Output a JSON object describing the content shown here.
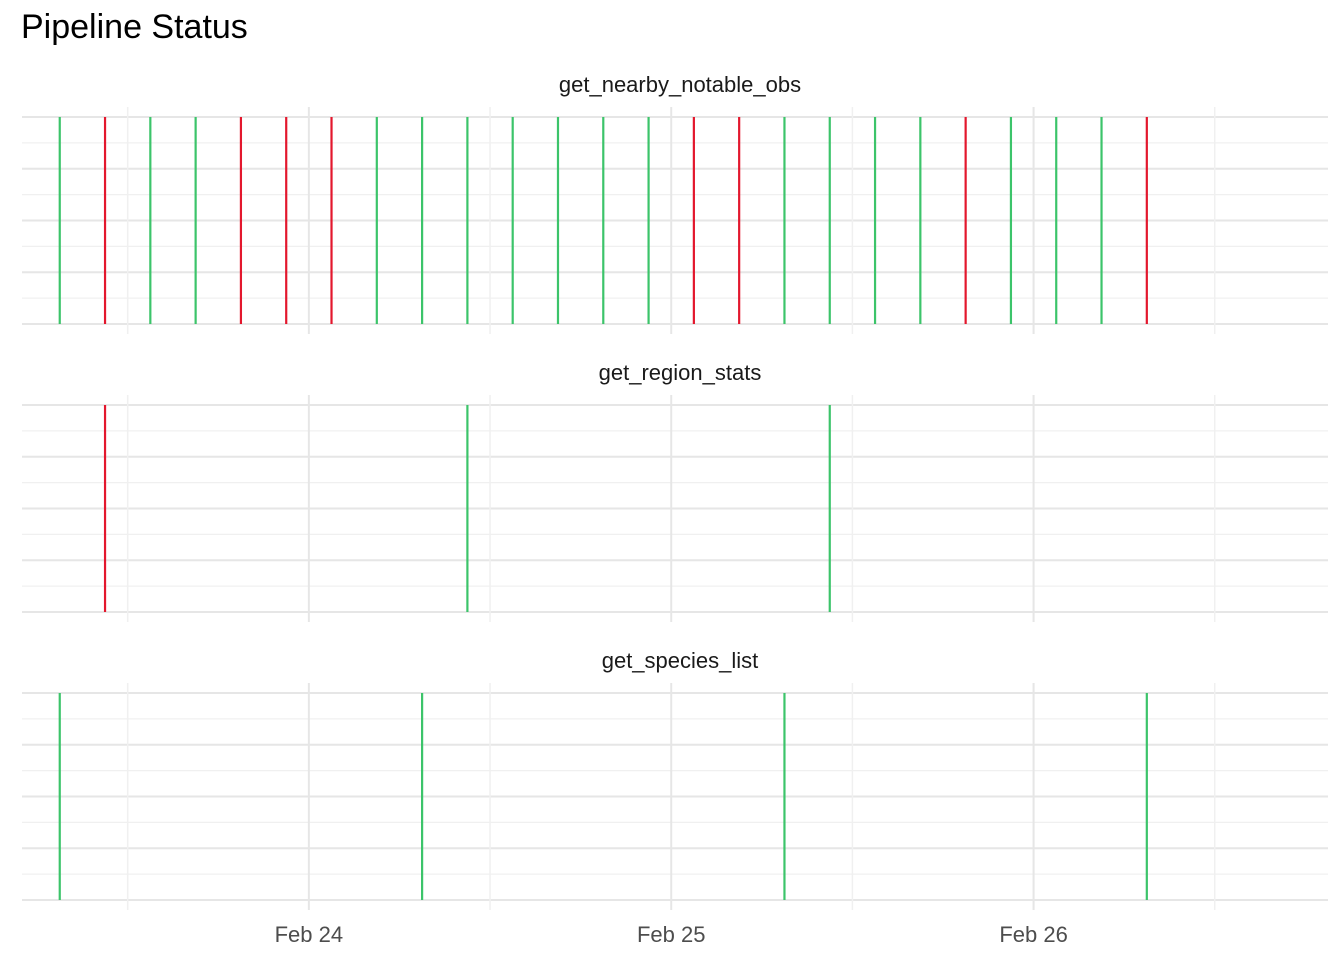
{
  "title": "Pipeline Status",
  "colors": {
    "success": "#3cc46a",
    "failure": "#e3172d",
    "grid_major": "#e6e6e6",
    "grid_minor": "#f0f0f0"
  },
  "chart_data": {
    "type": "event-timeline",
    "title": "Pipeline Status",
    "x_axis": {
      "type": "datetime",
      "range": [
        "2024-02-23T05:00",
        "2024-02-26T19:30"
      ],
      "ticks": [
        {
          "value": "2024-02-24T00:00",
          "label": "Feb 24"
        },
        {
          "value": "2024-02-25T00:00",
          "label": "Feb 25"
        },
        {
          "value": "2024-02-26T00:00",
          "label": "Feb 26"
        }
      ]
    },
    "grid": true,
    "legend": "none",
    "panels": [
      {
        "name": "get_nearby_notable_obs",
        "events": [
          {
            "time": "2024-02-23T07:30",
            "status": "success"
          },
          {
            "time": "2024-02-23T10:30",
            "status": "failure"
          },
          {
            "time": "2024-02-23T13:30",
            "status": "success"
          },
          {
            "time": "2024-02-23T16:30",
            "status": "success"
          },
          {
            "time": "2024-02-23T19:30",
            "status": "failure"
          },
          {
            "time": "2024-02-23T22:30",
            "status": "failure"
          },
          {
            "time": "2024-02-24T01:30",
            "status": "failure"
          },
          {
            "time": "2024-02-24T04:30",
            "status": "success"
          },
          {
            "time": "2024-02-24T07:30",
            "status": "success"
          },
          {
            "time": "2024-02-24T10:30",
            "status": "success"
          },
          {
            "time": "2024-02-24T13:30",
            "status": "success"
          },
          {
            "time": "2024-02-24T16:30",
            "status": "success"
          },
          {
            "time": "2024-02-24T19:30",
            "status": "success"
          },
          {
            "time": "2024-02-24T22:30",
            "status": "success"
          },
          {
            "time": "2024-02-25T01:30",
            "status": "failure"
          },
          {
            "time": "2024-02-25T04:30",
            "status": "failure"
          },
          {
            "time": "2024-02-25T07:30",
            "status": "success"
          },
          {
            "time": "2024-02-25T10:30",
            "status": "success"
          },
          {
            "time": "2024-02-25T13:30",
            "status": "success"
          },
          {
            "time": "2024-02-25T16:30",
            "status": "success"
          },
          {
            "time": "2024-02-25T19:30",
            "status": "failure"
          },
          {
            "time": "2024-02-25T22:30",
            "status": "success"
          },
          {
            "time": "2024-02-26T01:30",
            "status": "success"
          },
          {
            "time": "2024-02-26T04:30",
            "status": "success"
          },
          {
            "time": "2024-02-26T07:30",
            "status": "failure"
          }
        ]
      },
      {
        "name": "get_region_stats",
        "events": [
          {
            "time": "2024-02-23T10:30",
            "status": "failure"
          },
          {
            "time": "2024-02-24T10:30",
            "status": "success"
          },
          {
            "time": "2024-02-25T10:30",
            "status": "success"
          }
        ]
      },
      {
        "name": "get_species_list",
        "events": [
          {
            "time": "2024-02-23T07:30",
            "status": "success"
          },
          {
            "time": "2024-02-24T07:30",
            "status": "success"
          },
          {
            "time": "2024-02-25T07:30",
            "status": "success"
          },
          {
            "time": "2024-02-26T07:30",
            "status": "success"
          }
        ]
      }
    ]
  }
}
